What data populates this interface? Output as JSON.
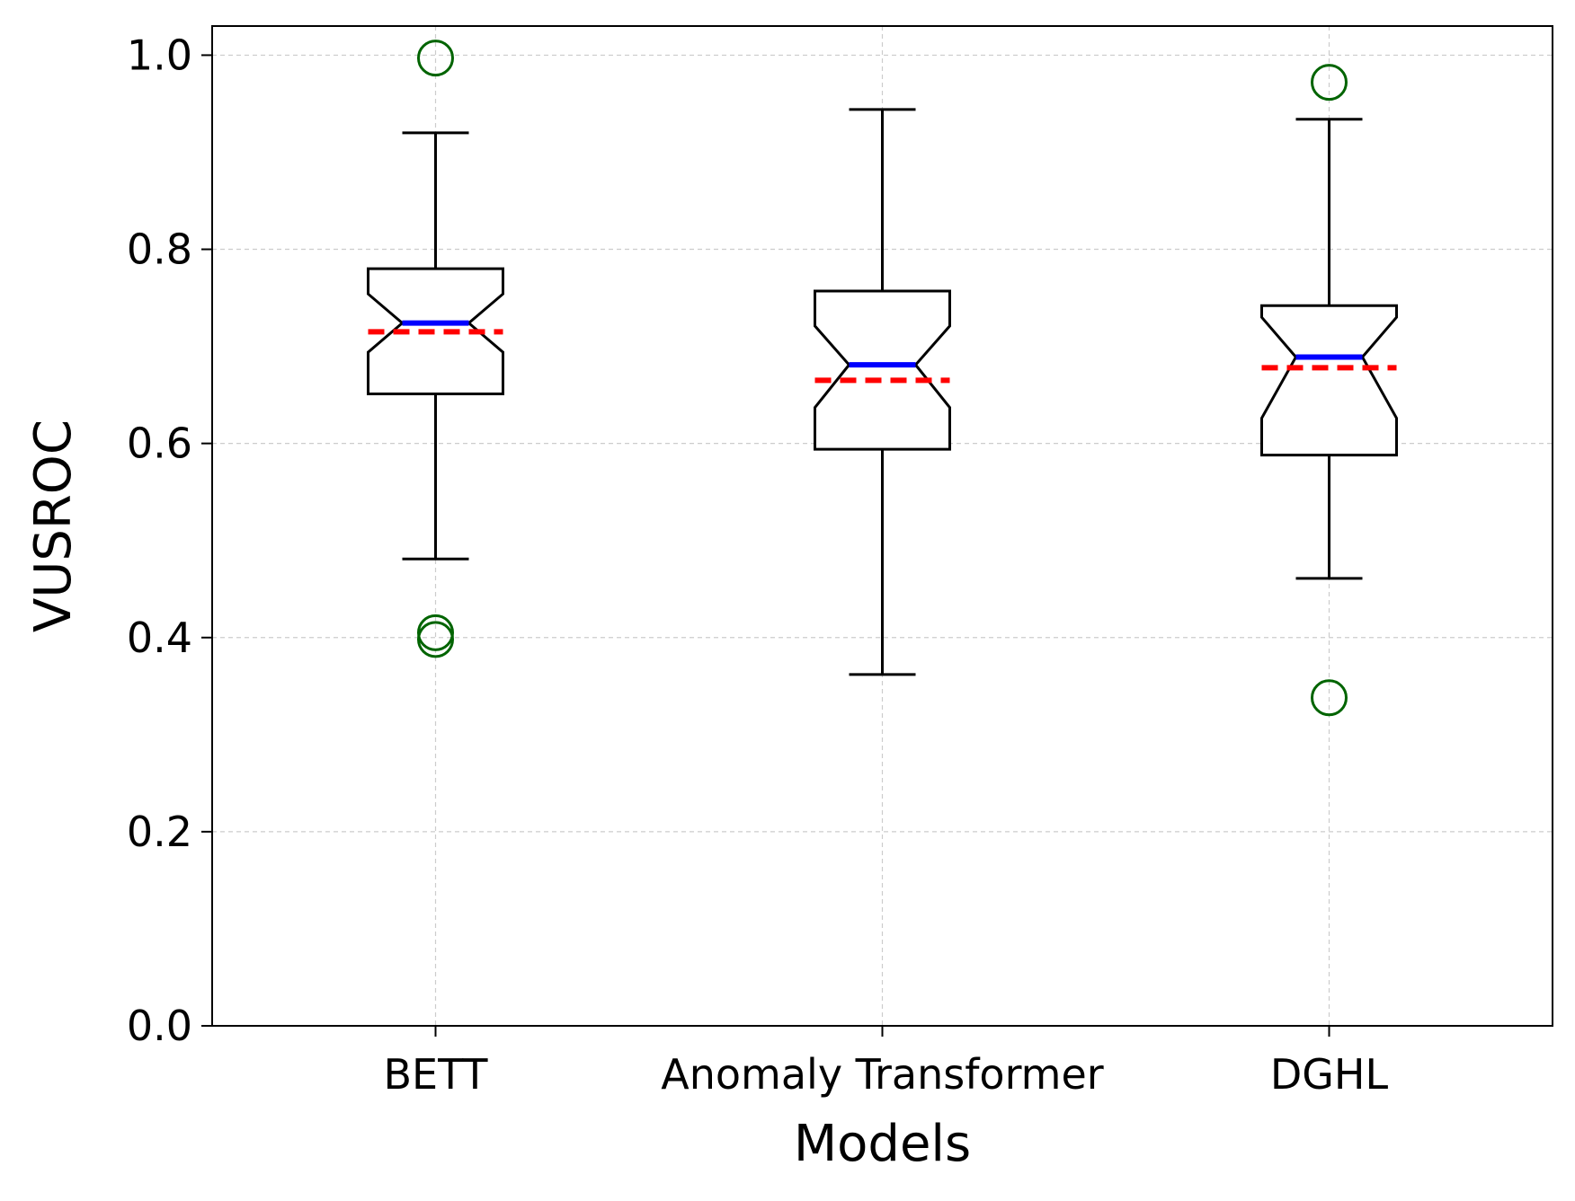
{
  "chart_data": {
    "type": "box",
    "title": "",
    "xlabel": "Models",
    "ylabel": "VUSROC",
    "ylim": [
      0.0,
      1.03
    ],
    "yticks": [
      0.0,
      0.2,
      0.4,
      0.6,
      0.8,
      1.0
    ],
    "ytick_labels": [
      "0.0",
      "0.2",
      "0.4",
      "0.6",
      "0.8",
      "1.0"
    ],
    "grid": true,
    "notched": true,
    "legend": "none",
    "colors": {
      "box": "#000000",
      "median": "#0000ff",
      "mean": "#ff0000",
      "outlier": "#006400",
      "grid": "#cccccc"
    },
    "categories": [
      "BETT",
      "Anomaly Transformer",
      "DGHL"
    ],
    "boxes": [
      {
        "label": "BETT",
        "whisker_low": 0.481,
        "q1": 0.651,
        "median": 0.724,
        "q3": 0.78,
        "whisker_high": 0.92,
        "mean": 0.715,
        "notch_low": 0.694,
        "notch_high": 0.754,
        "outliers": [
          0.997,
          0.405,
          0.398
        ]
      },
      {
        "label": "Anomaly Transformer",
        "whisker_low": 0.362,
        "q1": 0.594,
        "median": 0.681,
        "q3": 0.757,
        "whisker_high": 0.944,
        "mean": 0.665,
        "notch_low": 0.637,
        "notch_high": 0.721,
        "outliers": []
      },
      {
        "label": "DGHL",
        "whisker_low": 0.461,
        "q1": 0.588,
        "median": 0.689,
        "q3": 0.742,
        "whisker_high": 0.934,
        "mean": 0.678,
        "notch_low": 0.626,
        "notch_high": 0.73,
        "outliers": [
          0.972,
          0.338
        ]
      }
    ]
  }
}
